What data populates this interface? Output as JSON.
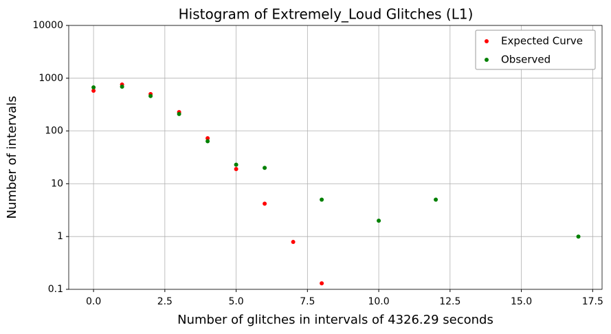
{
  "chart_data": {
    "type": "scatter",
    "title": "Histogram of Extremely_Loud Glitches (L1)",
    "xlabel": "Number of glitches in intervals of 4326.29 seconds",
    "ylabel": "Number of intervals",
    "xlim": [
      -0.87,
      17.83
    ],
    "ylim": [
      0.1,
      10000
    ],
    "ylog": true,
    "grid": true,
    "legend": "upper right",
    "xticks": [
      {
        "value": 0,
        "label": "0.0"
      },
      2.5,
      {
        "value": 5,
        "label": "5.0"
      },
      7.5,
      {
        "value": 10,
        "label": "10.0"
      },
      12.5,
      {
        "value": 15,
        "label": "15.0"
      },
      17.5
    ],
    "yticks": [
      0.1,
      1,
      10,
      100,
      1000,
      10000
    ],
    "series": [
      {
        "name": "Expected Curve",
        "color": "#ff0000",
        "x": [
          0,
          1,
          2,
          3,
          4,
          5,
          6,
          7,
          8
        ],
        "values": [
          580,
          760,
          500,
          228,
          73,
          19,
          4.2,
          0.79,
          0.13
        ]
      },
      {
        "name": "Observed",
        "color": "#008000",
        "x": [
          0,
          1,
          2,
          3,
          4,
          5,
          6,
          8,
          10,
          12,
          17
        ],
        "values": [
          670,
          690,
          460,
          210,
          64,
          23,
          20,
          5,
          2,
          5,
          1
        ]
      }
    ]
  }
}
